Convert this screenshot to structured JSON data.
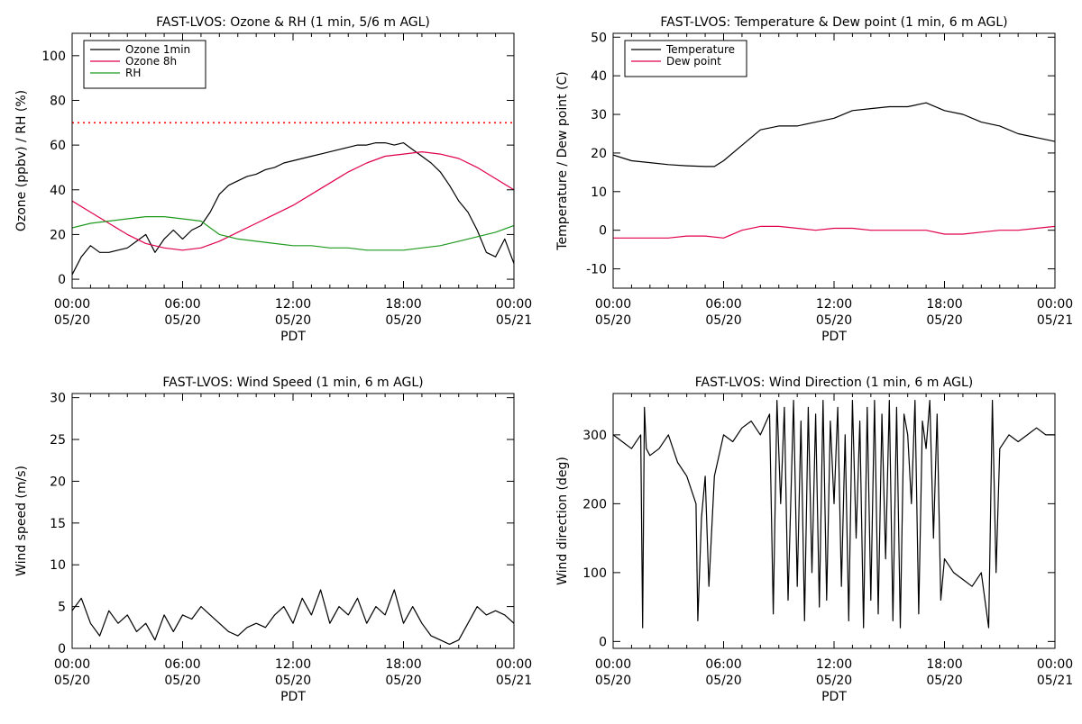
{
  "chart_data": [
    {
      "type": "line",
      "title": "FAST-LVOS: Ozone & RH (1 min, 5/6 m AGL)",
      "xlabel": "PDT",
      "ylabel": "Ozone (ppbv) / RH (%)",
      "xlim_hours": [
        0,
        24
      ],
      "ylim": [
        -4,
        110
      ],
      "x_ticks": [
        {
          "time": "00:00",
          "date": "05/20"
        },
        {
          "time": "06:00",
          "date": "05/20"
        },
        {
          "time": "12:00",
          "date": "05/20"
        },
        {
          "time": "18:00",
          "date": "05/20"
        },
        {
          "time": "00:00",
          "date": "05/21"
        }
      ],
      "y_ticks": [
        "0",
        "20",
        "40",
        "60",
        "80",
        "100"
      ],
      "y_tick_values": [
        0,
        20,
        40,
        60,
        80,
        100
      ],
      "legend_position": "top-left",
      "reference_line": {
        "y": 70,
        "color": "#ff0000",
        "style": "dotted"
      },
      "series": [
        {
          "name": "Ozone 1min",
          "color": "#000000",
          "x": [
            0,
            0.5,
            1,
            1.5,
            2,
            2.5,
            3,
            3.5,
            4,
            4.5,
            5,
            5.5,
            6,
            6.5,
            7,
            7.5,
            8,
            8.5,
            9,
            9.5,
            10,
            10.5,
            11,
            11.5,
            12,
            12.5,
            13,
            13.5,
            14,
            14.5,
            15,
            15.5,
            16,
            16.5,
            17,
            17.5,
            18,
            18.5,
            19,
            19.5,
            20,
            20.5,
            21,
            21.5,
            22,
            22.5,
            23,
            23.5,
            24
          ],
          "y": [
            2,
            10,
            15,
            12,
            12,
            13,
            14,
            17,
            20,
            12,
            18,
            22,
            18,
            22,
            24,
            30,
            38,
            42,
            44,
            46,
            47,
            49,
            50,
            52,
            53,
            54,
            55,
            56,
            57,
            58,
            59,
            60,
            60,
            61,
            61,
            60,
            61,
            58,
            55,
            52,
            48,
            42,
            35,
            30,
            22,
            12,
            10,
            18,
            7
          ]
        },
        {
          "name": "Ozone 8h",
          "color": "#e0004a",
          "x": [
            0,
            1,
            2,
            3,
            4,
            5,
            6,
            7,
            8,
            9,
            10,
            11,
            12,
            13,
            14,
            15,
            16,
            17,
            18,
            19,
            20,
            21,
            22,
            23,
            24
          ],
          "y": [
            35,
            30,
            25,
            20,
            16,
            14,
            13,
            14,
            17,
            21,
            25,
            29,
            33,
            38,
            43,
            48,
            52,
            55,
            56,
            57,
            56,
            54,
            50,
            45,
            40
          ]
        },
        {
          "name": "RH",
          "color": "#1e9a1e",
          "x": [
            0,
            1,
            2,
            3,
            4,
            5,
            6,
            7,
            8,
            9,
            10,
            11,
            12,
            13,
            14,
            15,
            16,
            17,
            18,
            19,
            20,
            21,
            22,
            23,
            24
          ],
          "y": [
            23,
            25,
            26,
            27,
            28,
            28,
            27,
            26,
            20,
            18,
            17,
            16,
            15,
            15,
            14,
            14,
            13,
            13,
            13,
            14,
            15,
            17,
            19,
            21,
            24
          ]
        }
      ]
    },
    {
      "type": "line",
      "title": "FAST-LVOS: Temperature & Dew point (1 min, 6 m AGL)",
      "xlabel": "PDT",
      "ylabel": "Temperature / Dew point (C)",
      "xlim_hours": [
        0,
        24
      ],
      "ylim": [
        -15,
        51
      ],
      "x_ticks": [
        {
          "time": "00:00",
          "date": "05/20"
        },
        {
          "time": "06:00",
          "date": "05/20"
        },
        {
          "time": "12:00",
          "date": "05/20"
        },
        {
          "time": "18:00",
          "date": "05/20"
        },
        {
          "time": "00:00",
          "date": "05/21"
        }
      ],
      "y_ticks": [
        "-10",
        "0",
        "10",
        "20",
        "30",
        "40",
        "50"
      ],
      "y_tick_values": [
        -10,
        0,
        10,
        20,
        30,
        40,
        50
      ],
      "legend_position": "top-left",
      "series": [
        {
          "name": "Temperature",
          "color": "#000000",
          "x": [
            0,
            1,
            2,
            3,
            4,
            5,
            5.5,
            6,
            7,
            8,
            9,
            10,
            11,
            12,
            13,
            14,
            15,
            16,
            17,
            18,
            19,
            20,
            21,
            22,
            23,
            24
          ],
          "y": [
            19.5,
            18,
            17.5,
            17,
            16.7,
            16.5,
            16.5,
            18,
            22,
            26,
            27,
            27,
            28,
            29,
            31,
            31.5,
            32,
            32,
            33,
            31,
            30,
            28,
            27,
            25,
            24,
            23
          ]
        },
        {
          "name": "Dew point",
          "color": "#e0004a",
          "x": [
            0,
            1,
            2,
            3,
            4,
            5,
            6,
            7,
            8,
            9,
            10,
            11,
            12,
            13,
            14,
            15,
            16,
            17,
            18,
            19,
            20,
            21,
            22,
            23,
            24
          ],
          "y": [
            -2,
            -2,
            -2,
            -2,
            -1.5,
            -1.5,
            -2,
            0,
            1,
            1,
            0.5,
            0,
            0.5,
            0.5,
            0,
            0,
            0,
            0,
            -1,
            -1,
            -0.5,
            0,
            0,
            0.5,
            1
          ]
        }
      ]
    },
    {
      "type": "line",
      "title": "FAST-LVOS: Wind Speed (1 min, 6 m AGL)",
      "xlabel": "PDT",
      "ylabel": "Wind speed (m/s)",
      "xlim_hours": [
        0,
        24
      ],
      "ylim": [
        0,
        30.5
      ],
      "x_ticks": [
        {
          "time": "00:00",
          "date": "05/20"
        },
        {
          "time": "06:00",
          "date": "05/20"
        },
        {
          "time": "12:00",
          "date": "05/20"
        },
        {
          "time": "18:00",
          "date": "05/20"
        },
        {
          "time": "00:00",
          "date": "05/21"
        }
      ],
      "y_ticks": [
        "0",
        "5",
        "10",
        "15",
        "20",
        "25",
        "30"
      ],
      "y_tick_values": [
        0,
        5,
        10,
        15,
        20,
        25,
        30
      ],
      "series": [
        {
          "color": "#000000",
          "x": [
            0,
            0.5,
            1,
            1.5,
            2,
            2.5,
            3,
            3.5,
            4,
            4.5,
            5,
            5.5,
            6,
            6.5,
            7,
            7.5,
            8,
            8.5,
            9,
            9.5,
            10,
            10.5,
            11,
            11.5,
            12,
            12.5,
            13,
            13.5,
            14,
            14.5,
            15,
            15.5,
            16,
            16.5,
            17,
            17.5,
            18,
            18.5,
            19,
            19.5,
            20,
            20.5,
            21,
            21.5,
            22,
            22.5,
            23,
            23.5,
            24
          ],
          "y": [
            4.5,
            6,
            3,
            1.5,
            4.5,
            3,
            4,
            2,
            3,
            1,
            4,
            2,
            4,
            3.5,
            5,
            4,
            3,
            2,
            1.5,
            2.5,
            3,
            2.5,
            4,
            5,
            3,
            6,
            4,
            7,
            3,
            5,
            4,
            6,
            3,
            5,
            4,
            7,
            3,
            5,
            3,
            1.5,
            1,
            0.5,
            1,
            3,
            5,
            4,
            4.5,
            4,
            3
          ]
        }
      ]
    },
    {
      "type": "line",
      "title": "FAST-LVOS: Wind Direction (1 min, 6 m AGL)",
      "xlabel": "PDT",
      "ylabel": "Wind direction (deg)",
      "xlim_hours": [
        0,
        24
      ],
      "ylim": [
        -10,
        360
      ],
      "x_ticks": [
        {
          "time": "00:00",
          "date": "05/20"
        },
        {
          "time": "06:00",
          "date": "05/20"
        },
        {
          "time": "12:00",
          "date": "05/20"
        },
        {
          "time": "18:00",
          "date": "05/20"
        },
        {
          "time": "00:00",
          "date": "05/21"
        }
      ],
      "y_ticks": [
        "0",
        "100",
        "200",
        "300"
      ],
      "y_tick_values": [
        0,
        100,
        200,
        300
      ],
      "series": [
        {
          "color": "#000000",
          "x": [
            0,
            0.5,
            1,
            1.5,
            1.6,
            1.7,
            1.8,
            2,
            2.5,
            3,
            3.5,
            4,
            4.5,
            4.6,
            4.8,
            5,
            5.2,
            5.5,
            6,
            6.5,
            7,
            7.5,
            8,
            8.5,
            8.7,
            8.9,
            9.1,
            9.3,
            9.5,
            9.8,
            10,
            10.2,
            10.4,
            10.6,
            10.8,
            11,
            11.2,
            11.4,
            11.6,
            11.8,
            12,
            12.2,
            12.4,
            12.6,
            12.8,
            13,
            13.2,
            13.4,
            13.6,
            13.8,
            14,
            14.2,
            14.4,
            14.6,
            14.8,
            15,
            15.2,
            15.4,
            15.6,
            15.8,
            16,
            16.2,
            16.4,
            16.6,
            16.8,
            17,
            17.2,
            17.4,
            17.6,
            17.8,
            18,
            18.5,
            19,
            19.5,
            20,
            20.2,
            20.4,
            20.6,
            20.8,
            21,
            21.5,
            22,
            22.5,
            23,
            23.5,
            24
          ],
          "y": [
            300,
            290,
            280,
            300,
            20,
            340,
            280,
            270,
            280,
            300,
            260,
            240,
            200,
            30,
            180,
            240,
            80,
            240,
            300,
            290,
            310,
            320,
            300,
            330,
            40,
            350,
            200,
            340,
            60,
            350,
            80,
            320,
            30,
            340,
            100,
            330,
            50,
            350,
            60,
            320,
            200,
            340,
            80,
            300,
            30,
            350,
            150,
            320,
            20,
            340,
            60,
            350,
            40,
            330,
            120,
            350,
            30,
            340,
            20,
            330,
            300,
            200,
            350,
            40,
            320,
            280,
            350,
            150,
            330,
            60,
            120,
            100,
            90,
            80,
            100,
            60,
            20,
            350,
            100,
            280,
            300,
            290,
            300,
            310,
            300,
            300
          ]
        }
      ]
    }
  ]
}
